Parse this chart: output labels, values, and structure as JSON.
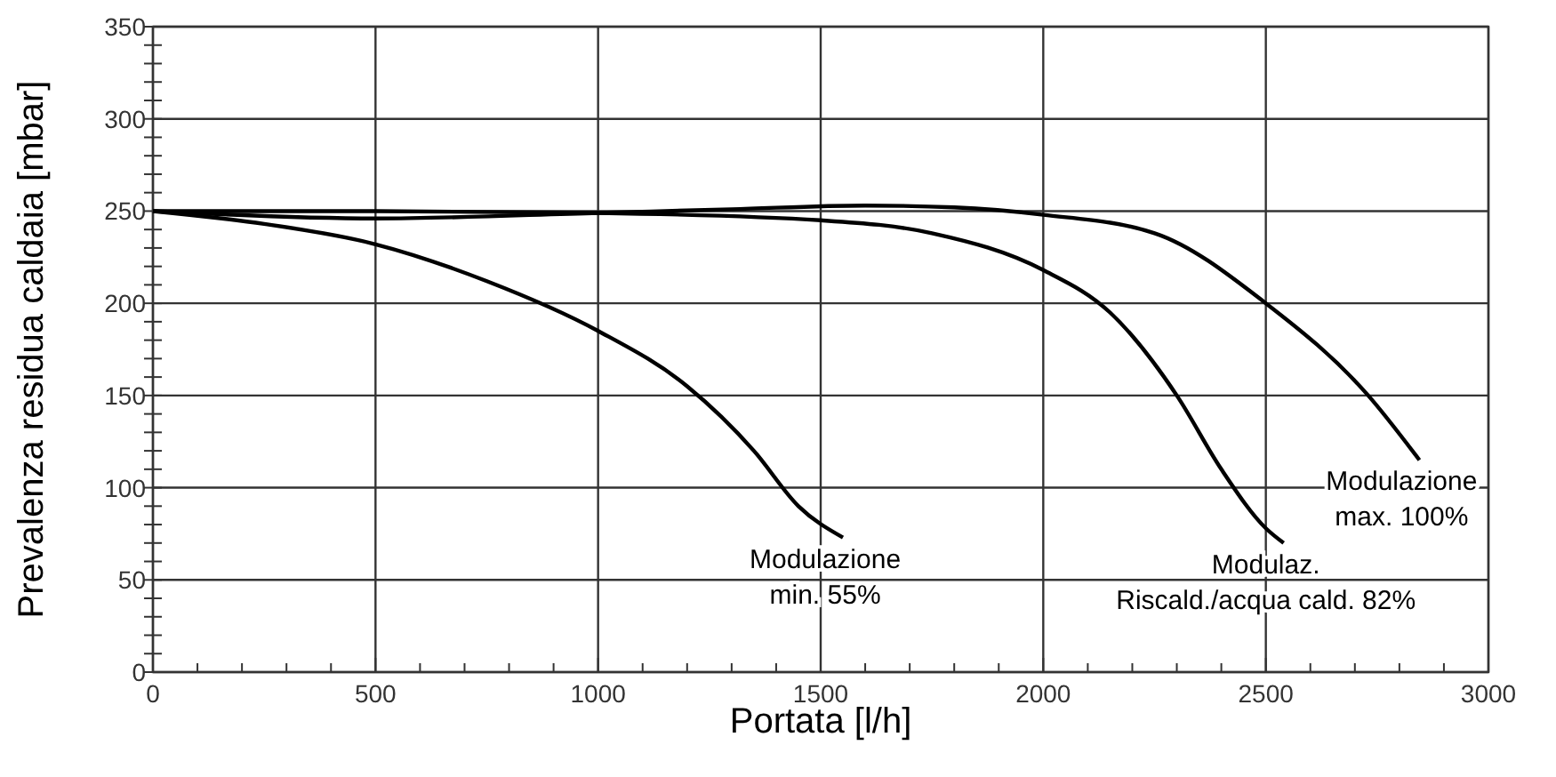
{
  "chart_data": {
    "type": "line",
    "xlabel": "Portata [l/h]",
    "ylabel": "Prevalenza residua caldaia [mbar]",
    "xlim": [
      0,
      3000
    ],
    "ylim": [
      0,
      350
    ],
    "xticks": [
      0,
      {
        "value": 100,
        "label": null
      },
      {
        "value": 200,
        "label": null
      },
      {
        "value": 300,
        "label": null
      },
      {
        "value": 400,
        "label": null
      },
      500,
      {
        "value": 600,
        "label": null
      },
      {
        "value": 700,
        "label": null
      },
      {
        "value": 800,
        "label": null
      },
      {
        "value": 900,
        "label": null
      },
      1000,
      {
        "value": 1100,
        "label": null
      },
      {
        "value": 1200,
        "label": null
      },
      {
        "value": 1300,
        "label": null
      },
      {
        "value": 1400,
        "label": null
      },
      1500,
      {
        "value": 1600,
        "label": null
      },
      {
        "value": 1700,
        "label": null
      },
      {
        "value": 1800,
        "label": null
      },
      {
        "value": 1900,
        "label": null
      },
      2000,
      {
        "value": 2100,
        "label": null
      },
      {
        "value": 2200,
        "label": null
      },
      {
        "value": 2300,
        "label": null
      },
      {
        "value": 2400,
        "label": null
      },
      2500,
      {
        "value": 2600,
        "label": null
      },
      {
        "value": 2700,
        "label": null
      },
      {
        "value": 2800,
        "label": null
      },
      {
        "value": 2900,
        "label": null
      },
      3000
    ],
    "yticks": [
      0,
      {
        "value": 10,
        "label": null
      },
      {
        "value": 20,
        "label": null
      },
      {
        "value": 30,
        "label": null
      },
      {
        "value": 40,
        "label": null
      },
      50,
      {
        "value": 60,
        "label": null
      },
      {
        "value": 70,
        "label": null
      },
      {
        "value": 80,
        "label": null
      },
      {
        "value": 90,
        "label": null
      },
      100,
      {
        "value": 110,
        "label": null
      },
      {
        "value": 120,
        "label": null
      },
      {
        "value": 130,
        "label": null
      },
      {
        "value": 140,
        "label": null
      },
      150,
      {
        "value": 160,
        "label": null
      },
      {
        "value": 170,
        "label": null
      },
      {
        "value": 180,
        "label": null
      },
      {
        "value": 190,
        "label": null
      },
      200,
      {
        "value": 210,
        "label": null
      },
      {
        "value": 220,
        "label": null
      },
      {
        "value": 230,
        "label": null
      },
      {
        "value": 240,
        "label": null
      },
      250,
      {
        "value": 260,
        "label": null
      },
      {
        "value": 270,
        "label": null
      },
      {
        "value": 280,
        "label": null
      },
      {
        "value": 290,
        "label": null
      },
      300,
      {
        "value": 310,
        "label": null
      },
      {
        "value": 320,
        "label": null
      },
      {
        "value": 330,
        "label": null
      },
      {
        "value": 340,
        "label": null
      },
      350
    ],
    "grid": true,
    "marker": "none",
    "line_style": "solid",
    "series": [
      {
        "name": "Modulazione\nmin. 55%",
        "color": "#000000",
        "x": [
          0,
          250,
          500,
          750,
          1000,
          1200,
          1350,
          1450,
          1550
        ],
        "values": [
          250,
          243,
          232,
          212,
          185,
          155,
          120,
          90,
          73
        ]
      },
      {
        "name": "Modulaz.\nRiscald./acqua cald. 82%",
        "color": "#000000",
        "x": [
          0,
          500,
          1000,
          1500,
          1750,
          2000,
          2150,
          2300,
          2400,
          2500,
          2540
        ],
        "values": [
          250,
          250,
          249,
          245,
          238,
          218,
          195,
          150,
          110,
          78,
          70
        ]
      },
      {
        "name": "Modulazione\nmax. 100%",
        "color": "#000000",
        "x": [
          0,
          500,
          1000,
          1300,
          1600,
          1800,
          2000,
          2250,
          2500,
          2730,
          2845
        ],
        "values": [
          250,
          246,
          249,
          251,
          253,
          252,
          248,
          238,
          200,
          150,
          115
        ]
      }
    ]
  }
}
